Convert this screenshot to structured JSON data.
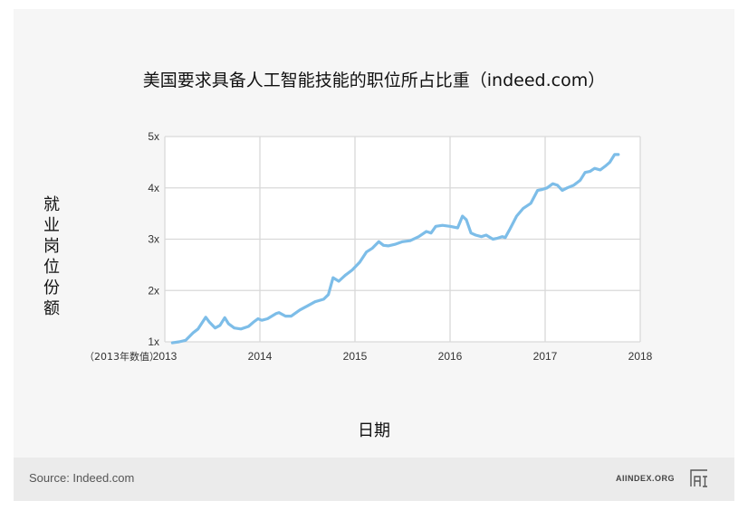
{
  "chart_data": {
    "type": "line",
    "title": "美国要求具备人工智能技能的职位所占比重（indeed.com）",
    "xlabel": "日期",
    "ylabel": "就业岗位份额",
    "ylabel_note": "（2013年数值）",
    "xlim": [
      2013,
      2018
    ],
    "ylim": [
      1,
      5
    ],
    "x_ticks": [
      "2013",
      "2014",
      "2015",
      "2016",
      "2017",
      "2018"
    ],
    "y_ticks": [
      "1x",
      "2x",
      "3x",
      "4x",
      "5x"
    ],
    "grid": true,
    "line_color": "#7dbde8",
    "series": [
      {
        "x": [
          2013.08,
          2013.15,
          2013.22,
          2013.3,
          2013.35,
          2013.43,
          2013.47,
          2013.53,
          2013.58,
          2013.63,
          2013.67,
          2013.73,
          2013.8,
          2013.88,
          2013.93,
          2013.98,
          2014.02,
          2014.08,
          2014.17,
          2014.2,
          2014.27,
          2014.33,
          2014.42,
          2014.5,
          2014.58,
          2014.67,
          2014.72,
          2014.77,
          2014.83,
          2014.9,
          2014.97,
          2015.05,
          2015.12,
          2015.18,
          2015.25,
          2015.3,
          2015.35,
          2015.42,
          2015.5,
          2015.58,
          2015.67,
          2015.75,
          2015.8,
          2015.85,
          2015.92,
          2016.0,
          2016.08,
          2016.13,
          2016.17,
          2016.22,
          2016.27,
          2016.33,
          2016.38,
          2016.45,
          2016.5,
          2016.55,
          2016.58,
          2016.63,
          2016.7,
          2016.77,
          2016.85,
          2016.92,
          2016.97,
          2017.02,
          2017.08,
          2017.13,
          2017.18,
          2017.23,
          2017.3,
          2017.37,
          2017.42,
          2017.47,
          2017.52,
          2017.58,
          2017.63,
          2017.68,
          2017.73,
          2017.77
        ],
        "y": [
          0.98,
          1.0,
          1.03,
          1.18,
          1.25,
          1.48,
          1.38,
          1.27,
          1.32,
          1.47,
          1.35,
          1.27,
          1.25,
          1.3,
          1.38,
          1.45,
          1.42,
          1.45,
          1.55,
          1.57,
          1.5,
          1.5,
          1.62,
          1.7,
          1.78,
          1.83,
          1.92,
          2.25,
          2.18,
          2.3,
          2.4,
          2.55,
          2.75,
          2.82,
          2.95,
          2.88,
          2.87,
          2.9,
          2.95,
          2.97,
          3.05,
          3.15,
          3.12,
          3.25,
          3.27,
          3.25,
          3.22,
          3.45,
          3.38,
          3.12,
          3.08,
          3.05,
          3.08,
          3.0,
          3.02,
          3.05,
          3.03,
          3.2,
          3.45,
          3.6,
          3.7,
          3.95,
          3.97,
          4.0,
          4.08,
          4.05,
          3.95,
          4.0,
          4.05,
          4.15,
          4.3,
          4.32,
          4.38,
          4.35,
          4.42,
          4.5,
          4.65,
          4.65
        ]
      }
    ]
  },
  "footer": {
    "source": "Source: Indeed.com",
    "brand": "AIINDEX.ORG",
    "brand_logo_text": "AI"
  }
}
